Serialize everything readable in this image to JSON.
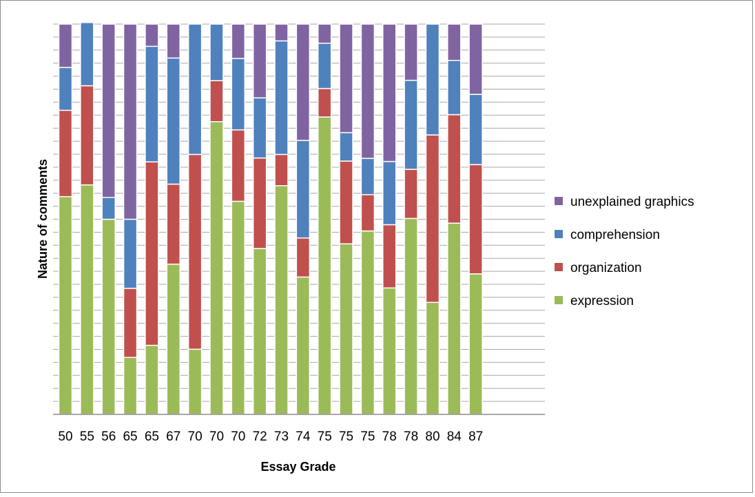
{
  "chart_data": {
    "type": "bar",
    "stacked": true,
    "normalized_percent": true,
    "title": "",
    "xlabel": "Essay Grade",
    "ylabel": "Nature of comments",
    "ylim": [
      0,
      100
    ],
    "grid": true,
    "legend_position": "right",
    "categories": [
      "50",
      "55",
      "56",
      "65",
      "65",
      "67",
      "70",
      "70",
      "70",
      "72",
      "73",
      "74",
      "75",
      "75",
      "75",
      "78",
      "78",
      "80",
      "84",
      "87"
    ],
    "series": [
      {
        "name": "expression",
        "color": "#9bbb59",
        "values": [
          55.8,
          58.8,
          50.0,
          14.6,
          17.7,
          38.5,
          16.7,
          75.0,
          54.6,
          42.5,
          58.6,
          35.2,
          76.2,
          43.7,
          47.0,
          32.4,
          50.2,
          28.7,
          49.0,
          36.0
        ]
      },
      {
        "name": "organization",
        "color": "#c0504d",
        "values": [
          22.1,
          25.4,
          0.0,
          17.7,
          47.0,
          20.5,
          49.9,
          10.5,
          18.3,
          23.2,
          8.0,
          10.0,
          7.3,
          21.2,
          9.3,
          16.2,
          12.6,
          42.9,
          27.8,
          28.0
        ]
      },
      {
        "name": "comprehension",
        "color": "#4f81bd",
        "values": [
          11.0,
          16.2,
          5.6,
          17.7,
          29.6,
          32.3,
          33.4,
          14.5,
          18.3,
          15.4,
          29.1,
          25.0,
          11.6,
          7.3,
          9.3,
          16.2,
          22.8,
          28.4,
          13.9,
          18.0
        ]
      },
      {
        "name": "unexplained graphics",
        "color": "#8064a2",
        "values": [
          11.1,
          0.0,
          44.4,
          50.0,
          5.7,
          8.7,
          0.0,
          0.0,
          8.8,
          18.9,
          4.3,
          29.8,
          4.9,
          27.8,
          34.4,
          35.2,
          14.4,
          0.0,
          9.3,
          18.0
        ]
      }
    ]
  }
}
